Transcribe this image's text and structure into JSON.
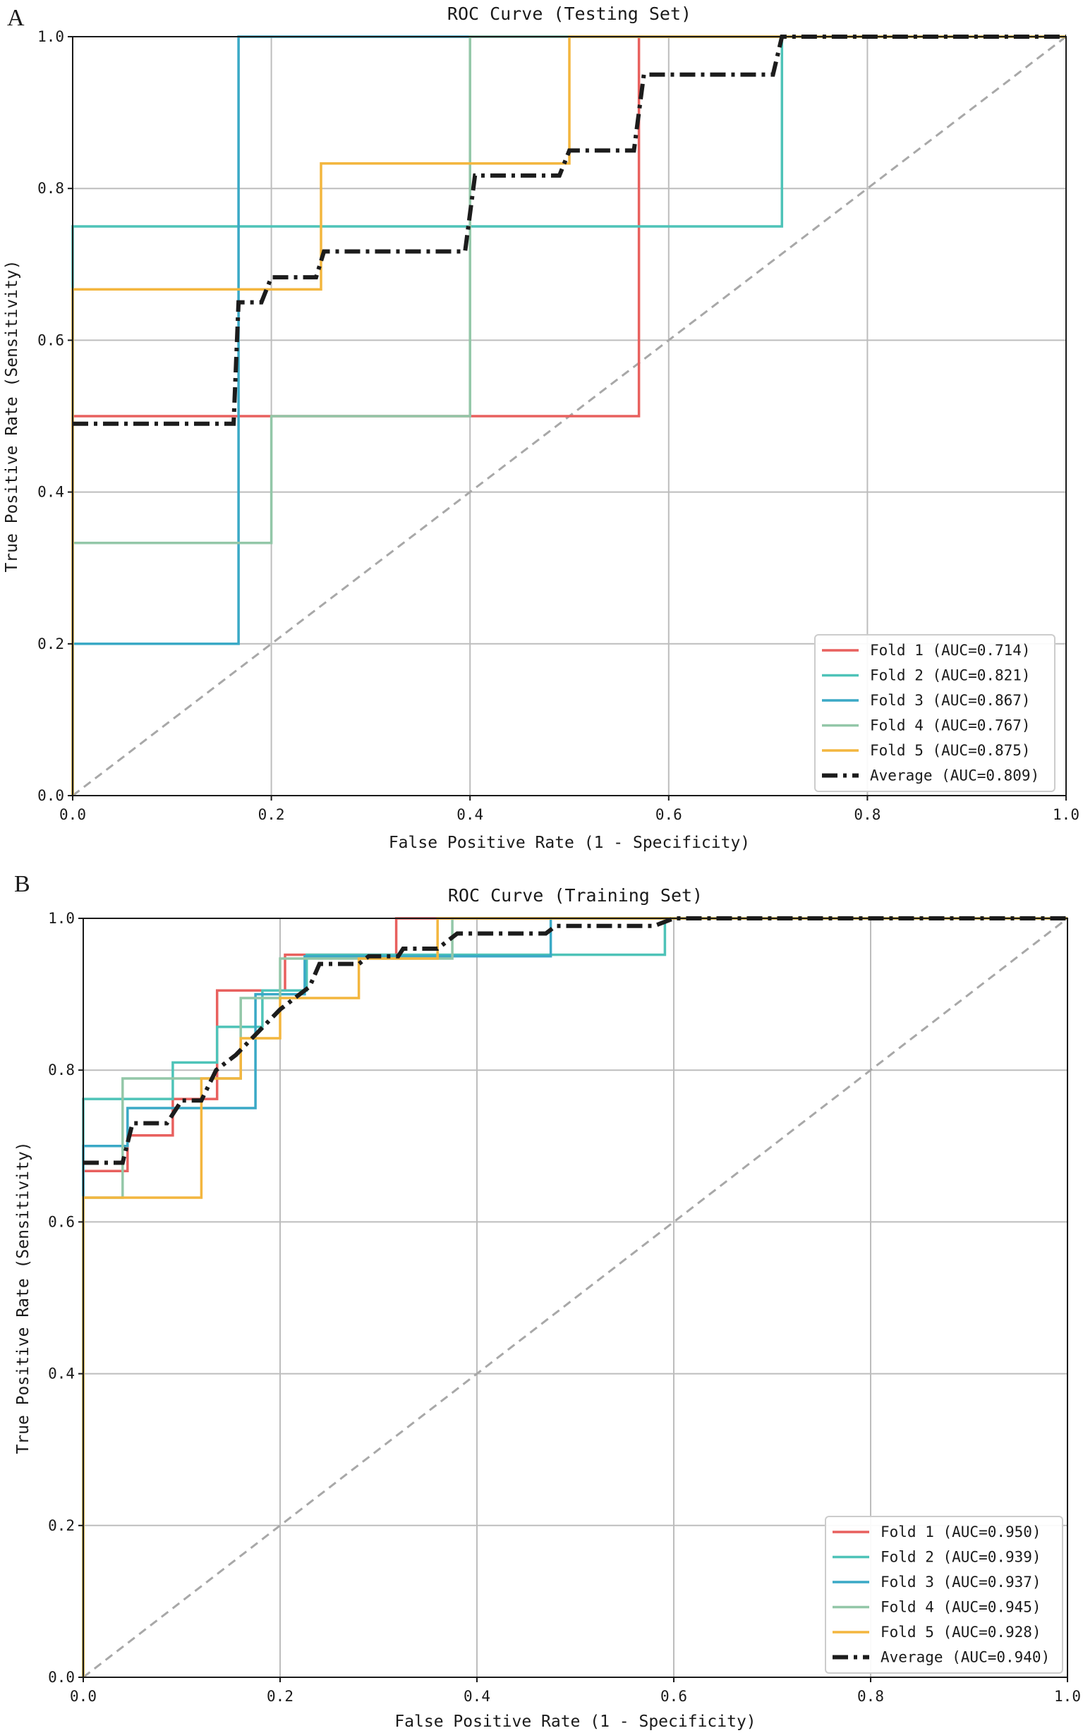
{
  "panels": [
    {
      "letter": "A",
      "chart_data": {
        "type": "line",
        "title": "ROC Curve (Testing Set)",
        "xlabel": "False Positive Rate (1 - Specificity)",
        "ylabel": "True Positive Rate (Sensitivity)",
        "xlim": [
          0,
          1
        ],
        "ylim": [
          0,
          1
        ],
        "x_ticks": [
          "0.0",
          "0.2",
          "0.4",
          "0.6",
          "0.8",
          "1.0"
        ],
        "y_ticks": [
          "0.0",
          "0.2",
          "0.4",
          "0.6",
          "0.8",
          "1.0"
        ],
        "grid": true,
        "legend_position": "lower-right",
        "diagonal_reference": true,
        "series": [
          {
            "name": "Fold 1 (AUC=0.714)",
            "color": "#e8605e",
            "style": "solid",
            "points": [
              [
                0,
                0
              ],
              [
                0,
                0.5
              ],
              [
                0.4,
                0.5
              ],
              [
                0.57,
                0.5
              ],
              [
                0.57,
                1.0
              ],
              [
                1,
                1
              ]
            ]
          },
          {
            "name": "Fold 2 (AUC=0.821)",
            "color": "#4ec3b8",
            "style": "solid",
            "points": [
              [
                0,
                0
              ],
              [
                0,
                0.75
              ],
              [
                0.714,
                0.75
              ],
              [
                0.714,
                1.0
              ],
              [
                1,
                1
              ]
            ]
          },
          {
            "name": "Fold 3 (AUC=0.867)",
            "color": "#3aa9c6",
            "style": "solid",
            "points": [
              [
                0,
                0
              ],
              [
                0,
                0.2
              ],
              [
                0.167,
                0.2
              ],
              [
                0.167,
                1.0
              ],
              [
                1,
                1
              ]
            ]
          },
          {
            "name": "Fold 4 (AUC=0.767)",
            "color": "#93c7a8",
            "style": "solid",
            "points": [
              [
                0,
                0
              ],
              [
                0,
                0.333
              ],
              [
                0.2,
                0.333
              ],
              [
                0.2,
                0.5
              ],
              [
                0.4,
                0.5
              ],
              [
                0.4,
                1.0
              ],
              [
                1,
                1
              ]
            ]
          },
          {
            "name": "Fold 5 (AUC=0.875)",
            "color": "#f3b63e",
            "style": "solid",
            "points": [
              [
                0,
                0
              ],
              [
                0,
                0.667
              ],
              [
                0.25,
                0.667
              ],
              [
                0.25,
                0.833
              ],
              [
                0.5,
                0.833
              ],
              [
                0.5,
                1.0
              ],
              [
                1,
                1
              ]
            ]
          },
          {
            "name": "Average (AUC=0.809)",
            "color": "#1c1c1c",
            "style": "dashdot",
            "points": [
              [
                0,
                0.49
              ],
              [
                0.162,
                0.49
              ],
              [
                0.167,
                0.65
              ],
              [
                0.19,
                0.65
              ],
              [
                0.2,
                0.683
              ],
              [
                0.245,
                0.683
              ],
              [
                0.253,
                0.717
              ],
              [
                0.395,
                0.717
              ],
              [
                0.405,
                0.817
              ],
              [
                0.49,
                0.817
              ],
              [
                0.5,
                0.85
              ],
              [
                0.565,
                0.85
              ],
              [
                0.575,
                0.95
              ],
              [
                0.705,
                0.95
              ],
              [
                0.714,
                1.0
              ],
              [
                1,
                1
              ]
            ]
          }
        ]
      }
    },
    {
      "letter": "B",
      "chart_data": {
        "type": "line",
        "title": "ROC Curve (Training Set)",
        "xlabel": "False Positive Rate (1 - Specificity)",
        "ylabel": "True Positive Rate (Sensitivity)",
        "xlim": [
          0,
          1
        ],
        "ylim": [
          0,
          1
        ],
        "x_ticks": [
          "0.0",
          "0.2",
          "0.4",
          "0.6",
          "0.8",
          "1.0"
        ],
        "y_ticks": [
          "0.0",
          "0.2",
          "0.4",
          "0.6",
          "0.8",
          "1.0"
        ],
        "grid": true,
        "legend_position": "lower-right",
        "diagonal_reference": true,
        "series": [
          {
            "name": "Fold 1 (AUC=0.950)",
            "color": "#e8605e",
            "style": "solid",
            "points": [
              [
                0,
                0
              ],
              [
                0,
                0.667
              ],
              [
                0.045,
                0.667
              ],
              [
                0.045,
                0.714
              ],
              [
                0.091,
                0.714
              ],
              [
                0.091,
                0.762
              ],
              [
                0.136,
                0.762
              ],
              [
                0.136,
                0.905
              ],
              [
                0.205,
                0.905
              ],
              [
                0.205,
                0.952
              ],
              [
                0.318,
                0.952
              ],
              [
                0.318,
                1.0
              ],
              [
                1,
                1
              ]
            ]
          },
          {
            "name": "Fold 2 (AUC=0.939)",
            "color": "#4ec3b8",
            "style": "solid",
            "points": [
              [
                0,
                0
              ],
              [
                0,
                0.762
              ],
              [
                0.091,
                0.762
              ],
              [
                0.091,
                0.81
              ],
              [
                0.136,
                0.81
              ],
              [
                0.136,
                0.857
              ],
              [
                0.182,
                0.857
              ],
              [
                0.182,
                0.905
              ],
              [
                0.227,
                0.905
              ],
              [
                0.227,
                0.952
              ],
              [
                0.591,
                0.952
              ],
              [
                0.591,
                1.0
              ],
              [
                1,
                1
              ]
            ]
          },
          {
            "name": "Fold 3 (AUC=0.937)",
            "color": "#3aa9c6",
            "style": "solid",
            "points": [
              [
                0,
                0
              ],
              [
                0,
                0.7
              ],
              [
                0.045,
                0.7
              ],
              [
                0.045,
                0.75
              ],
              [
                0.175,
                0.75
              ],
              [
                0.175,
                0.9
              ],
              [
                0.225,
                0.9
              ],
              [
                0.225,
                0.95
              ],
              [
                0.475,
                0.95
              ],
              [
                0.475,
                1.0
              ],
              [
                1,
                1
              ]
            ]
          },
          {
            "name": "Fold 4 (AUC=0.945)",
            "color": "#93c7a8",
            "style": "solid",
            "points": [
              [
                0,
                0
              ],
              [
                0,
                0.632
              ],
              [
                0.04,
                0.632
              ],
              [
                0.04,
                0.789
              ],
              [
                0.16,
                0.789
              ],
              [
                0.16,
                0.895
              ],
              [
                0.2,
                0.895
              ],
              [
                0.2,
                0.947
              ],
              [
                0.375,
                0.947
              ],
              [
                0.375,
                1.0
              ],
              [
                1,
                1
              ]
            ]
          },
          {
            "name": "Fold 5 (AUC=0.928)",
            "color": "#f3b63e",
            "style": "solid",
            "points": [
              [
                0,
                0
              ],
              [
                0,
                0.632
              ],
              [
                0.12,
                0.632
              ],
              [
                0.12,
                0.789
              ],
              [
                0.16,
                0.789
              ],
              [
                0.16,
                0.842
              ],
              [
                0.2,
                0.842
              ],
              [
                0.2,
                0.895
              ],
              [
                0.28,
                0.895
              ],
              [
                0.28,
                0.947
              ],
              [
                0.36,
                0.947
              ],
              [
                0.36,
                1.0
              ],
              [
                1,
                1
              ]
            ]
          },
          {
            "name": "Average (AUC=0.940)",
            "color": "#1c1c1c",
            "style": "dashdot",
            "points": [
              [
                0,
                0.678
              ],
              [
                0.04,
                0.678
              ],
              [
                0.05,
                0.73
              ],
              [
                0.085,
                0.73
              ],
              [
                0.1,
                0.76
              ],
              [
                0.12,
                0.76
              ],
              [
                0.135,
                0.8
              ],
              [
                0.155,
                0.82
              ],
              [
                0.17,
                0.84
              ],
              [
                0.2,
                0.88
              ],
              [
                0.23,
                0.91
              ],
              [
                0.24,
                0.94
              ],
              [
                0.28,
                0.94
              ],
              [
                0.29,
                0.95
              ],
              [
                0.32,
                0.95
              ],
              [
                0.325,
                0.96
              ],
              [
                0.36,
                0.96
              ],
              [
                0.37,
                0.97
              ],
              [
                0.38,
                0.98
              ],
              [
                0.47,
                0.98
              ],
              [
                0.48,
                0.99
              ],
              [
                0.58,
                0.99
              ],
              [
                0.6,
                1.0
              ],
              [
                1,
                1
              ]
            ]
          }
        ]
      }
    }
  ]
}
